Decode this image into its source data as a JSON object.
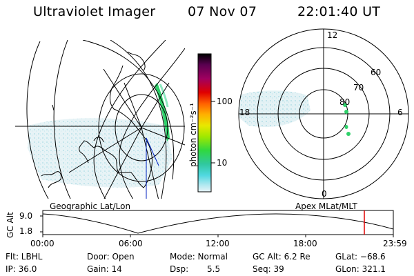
{
  "header": {
    "instrument": "Ultraviolet Imager",
    "date": "07 Nov 07",
    "time": "22:01:40 UT"
  },
  "left_panel": {
    "label": "Geographic Lat/Lon"
  },
  "right_panel": {
    "label": "Apex MLat/MLT",
    "mlt_labels": {
      "top": "12",
      "left": "18",
      "right": "6",
      "bottom": "0"
    },
    "lat_labels": [
      "60",
      "70",
      "80"
    ]
  },
  "colorbar": {
    "unit_label": "photon cm⁻²s⁻¹",
    "ticks": [
      "100",
      "10"
    ],
    "colors": [
      "#000000",
      "#5a0050",
      "#a00060",
      "#e00000",
      "#ff6000",
      "#ffb000",
      "#e8e800",
      "#a0e800",
      "#30d840",
      "#30c8a0",
      "#50d8e0",
      "#b0e8f0",
      "#e8f4f8"
    ]
  },
  "timeline": {
    "ylabel": "GC Alt",
    "y_ticks": [
      "9.0",
      "1.8"
    ],
    "x_ticks": [
      "00:00",
      "06:00",
      "12:00",
      "18:00",
      "23:59"
    ],
    "current_time": "22:01:40",
    "marker_color": "#e00000"
  },
  "info": {
    "rows": [
      [
        "Flt: LBHL",
        "Door: Open",
        "Mode: Normal",
        "GC Alt: 6.2 Re",
        "GLat: −68.6"
      ],
      [
        "IP: 36.0",
        "Gain: 14",
        "Dsp:",
        "Seq: 39",
        "GLon: 321.1"
      ]
    ],
    "dsp_value": "5.5"
  }
}
